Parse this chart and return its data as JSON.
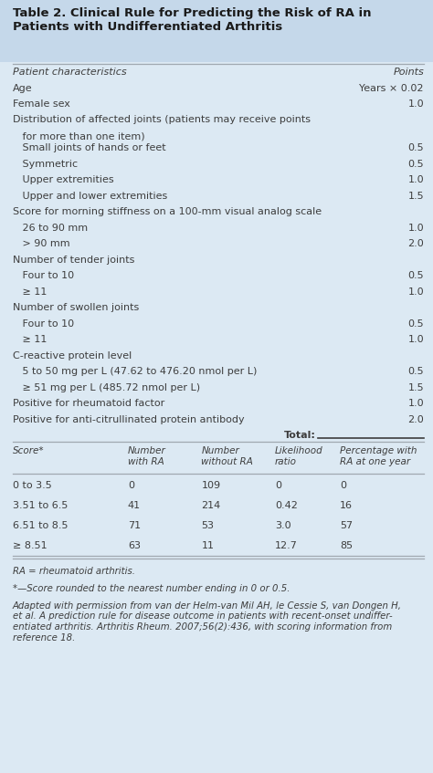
{
  "title_line1": "Table 2. Clinical Rule for Predicting the Risk of RA in",
  "title_line2": "Patients with Undifferentiated Arthritis",
  "bg_header_color": "#c5d8ea",
  "bg_body_color": "#dce9f3",
  "title_color": "#1a1a1a",
  "text_color": "#3d3d3d",
  "line_color": "#a0a8b0",
  "upper_rows": [
    {
      "label": "Patient characteristics",
      "points": "Points",
      "indent": 0,
      "italic": true,
      "header": true
    },
    {
      "label": "Age",
      "points": "Years × 0.02",
      "indent": 0
    },
    {
      "label": "Female sex",
      "points": "1.0",
      "indent": 0
    },
    {
      "label": "Distribution of affected joints (patients may receive points",
      "points": "",
      "indent": 0
    },
    {
      "label": "   for more than one item)",
      "points": "",
      "indent": 0,
      "continuation": true
    },
    {
      "label": "   Small joints of hands or feet",
      "points": "0.5",
      "indent": 1
    },
    {
      "label": "   Symmetric",
      "points": "0.5",
      "indent": 1
    },
    {
      "label": "   Upper extremities",
      "points": "1.0",
      "indent": 1
    },
    {
      "label": "   Upper and lower extremities",
      "points": "1.5",
      "indent": 1
    },
    {
      "label": "Score for morning stiffness on a 100-mm visual analog scale",
      "points": "",
      "indent": 0
    },
    {
      "label": "   26 to 90 mm",
      "points": "1.0",
      "indent": 1
    },
    {
      "label": "   > 90 mm",
      "points": "2.0",
      "indent": 1
    },
    {
      "label": "Number of tender joints",
      "points": "",
      "indent": 0
    },
    {
      "label": "   Four to 10",
      "points": "0.5",
      "indent": 1
    },
    {
      "label": "   ≥ 11",
      "points": "1.0",
      "indent": 1
    },
    {
      "label": "Number of swollen joints",
      "points": "",
      "indent": 0
    },
    {
      "label": "   Four to 10",
      "points": "0.5",
      "indent": 1
    },
    {
      "label": "   ≥ 11",
      "points": "1.0",
      "indent": 1
    },
    {
      "label": "C-reactive protein level",
      "points": "",
      "indent": 0
    },
    {
      "label": "   5 to 50 mg per L (47.62 to 476.20 nmol per L)",
      "points": "0.5",
      "indent": 1
    },
    {
      "label": "   ≥ 51 mg per L (485.72 nmol per L)",
      "points": "1.5",
      "indent": 1
    },
    {
      "label": "Positive for rheumatoid factor",
      "points": "1.0",
      "indent": 0
    },
    {
      "label": "Positive for anti-citrullinated protein antibody",
      "points": "2.0",
      "indent": 0
    },
    {
      "label": "Total:",
      "points": "",
      "indent": 0,
      "total": true
    }
  ],
  "lower_header": [
    "Score*",
    "Number\nwith RA",
    "Number\nwithout RA",
    "Likelihood\nratio",
    "Percentage with\nRA at one year"
  ],
  "lower_rows": [
    [
      "0 to 3.5",
      "0",
      "109",
      "0",
      "0"
    ],
    [
      "3.51 to 6.5",
      "41",
      "214",
      "0.42",
      "16"
    ],
    [
      "6.51 to 8.5",
      "71",
      "53",
      "3.0",
      "57"
    ],
    [
      "≥ 8.51",
      "63",
      "11",
      "12.7",
      "85"
    ]
  ],
  "footnotes": [
    {
      "text": "RA = rheumatoid arthritis.",
      "italic": true
    },
    {
      "text": "*—Score rounded to the nearest number ending in 0 or 0.5.",
      "italic": true
    },
    {
      "text": "Adapted with permission from van der Helm-van Mil AH, le Cessie S, van Dongen H,\net al. A prediction rule for disease outcome in patients with recent-onset undiffer-\nentiated arthritis. Arthritis Rheum. 2007;56(2):436, with scoring information from\nreference 18.",
      "italic": true
    }
  ]
}
